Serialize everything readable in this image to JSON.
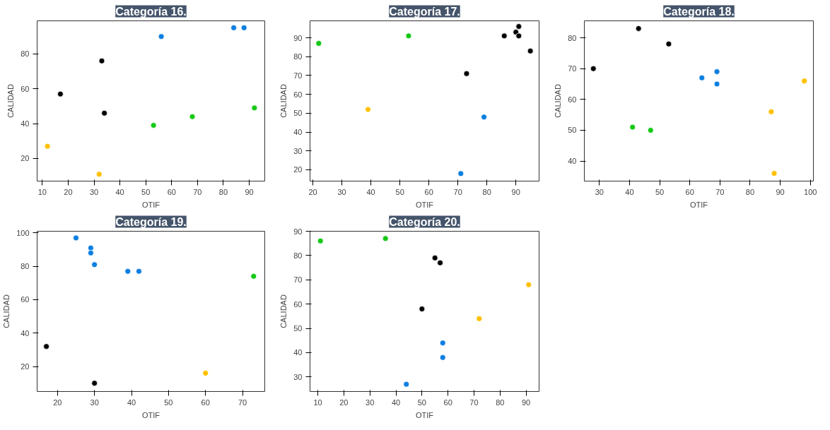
{
  "chart_data": [
    {
      "type": "scatter",
      "title": "Categoría 16.",
      "xlabel": "OTIF",
      "ylabel": "CALIDAD",
      "xlim": [
        8,
        96
      ],
      "ylim": [
        7,
        99
      ],
      "xticks": [
        10,
        20,
        30,
        40,
        50,
        60,
        70,
        80,
        90
      ],
      "yticks": [
        20,
        40,
        60,
        80
      ],
      "grid": false,
      "marker": "circle",
      "series": [
        {
          "color": "#0a7ee0",
          "x": [
            56,
            84,
            88
          ],
          "values": [
            90,
            95,
            95
          ]
        },
        {
          "color": "#000000",
          "x": [
            17,
            33,
            34
          ],
          "values": [
            57,
            76,
            46
          ]
        },
        {
          "color": "#14c814",
          "x": [
            53,
            68,
            92
          ],
          "values": [
            39,
            44,
            49
          ]
        },
        {
          "color": "#ffc000",
          "x": [
            12,
            32
          ],
          "values": [
            27,
            11
          ]
        }
      ]
    },
    {
      "type": "scatter",
      "title": "Categoría 17.",
      "xlabel": "OTIF",
      "ylabel": "CALIDAD",
      "xlim": [
        19,
        98
      ],
      "ylim": [
        14,
        99
      ],
      "xticks": [
        20,
        30,
        40,
        50,
        60,
        70,
        80,
        90
      ],
      "yticks": [
        20,
        30,
        40,
        50,
        60,
        70,
        80,
        90
      ],
      "grid": false,
      "marker": "circle",
      "series": [
        {
          "color": "#14c814",
          "x": [
            22,
            53
          ],
          "values": [
            87,
            91
          ]
        },
        {
          "color": "#ffc000",
          "x": [
            39
          ],
          "values": [
            52
          ]
        },
        {
          "color": "#0a7ee0",
          "x": [
            71,
            79
          ],
          "values": [
            18,
            48
          ]
        },
        {
          "color": "#000000",
          "x": [
            73,
            86,
            90,
            91,
            91,
            95
          ],
          "values": [
            71,
            91,
            93,
            96,
            91,
            83
          ]
        }
      ]
    },
    {
      "type": "scatter",
      "title": "Categoría 18.",
      "xlabel": "OTIF",
      "ylabel": "CALIDAD",
      "xlim": [
        25,
        101
      ],
      "ylim": [
        33.5,
        85.5
      ],
      "xticks": [
        30,
        40,
        50,
        60,
        70,
        80,
        90,
        100
      ],
      "yticks": [
        40,
        50,
        60,
        70,
        80
      ],
      "grid": false,
      "marker": "circle",
      "series": [
        {
          "color": "#000000",
          "x": [
            28,
            43,
            53
          ],
          "values": [
            70,
            83,
            78
          ]
        },
        {
          "color": "#0a7ee0",
          "x": [
            64,
            69,
            69
          ],
          "values": [
            67,
            69,
            65
          ]
        },
        {
          "color": "#14c814",
          "x": [
            41,
            47
          ],
          "values": [
            51,
            50
          ]
        },
        {
          "color": "#ffc000",
          "x": [
            87,
            88,
            98
          ],
          "values": [
            56,
            36,
            66
          ]
        }
      ]
    },
    {
      "type": "scatter",
      "title": "Categoría 19.",
      "xlabel": "OTIF",
      "ylabel": "CALIDAD",
      "xlim": [
        14.5,
        76
      ],
      "ylim": [
        5,
        101
      ],
      "xticks": [
        20,
        30,
        40,
        50,
        60,
        70
      ],
      "yticks": [
        20,
        40,
        60,
        80,
        100
      ],
      "grid": false,
      "marker": "circle",
      "series": [
        {
          "color": "#0a7ee0",
          "x": [
            25,
            29,
            29,
            30,
            39,
            42
          ],
          "values": [
            97,
            91,
            88,
            81,
            77,
            77
          ]
        },
        {
          "color": "#14c814",
          "x": [
            73
          ],
          "values": [
            74
          ]
        },
        {
          "color": "#000000",
          "x": [
            17,
            30
          ],
          "values": [
            32,
            10
          ]
        },
        {
          "color": "#ffc000",
          "x": [
            60
          ],
          "values": [
            16
          ]
        }
      ]
    },
    {
      "type": "scatter",
      "title": "Categoría 20.",
      "xlabel": "OTIF",
      "ylabel": "CALIDAD",
      "xlim": [
        7,
        95
      ],
      "ylim": [
        24,
        90
      ],
      "xticks": [
        10,
        20,
        30,
        40,
        50,
        60,
        70,
        80,
        90
      ],
      "yticks": [
        30,
        40,
        50,
        60,
        70,
        80,
        90
      ],
      "grid": false,
      "marker": "circle",
      "series": [
        {
          "color": "#14c814",
          "x": [
            11,
            36
          ],
          "values": [
            86,
            87
          ]
        },
        {
          "color": "#000000",
          "x": [
            50,
            55,
            57
          ],
          "values": [
            58,
            79,
            77
          ]
        },
        {
          "color": "#ffc000",
          "x": [
            72,
            91
          ],
          "values": [
            54,
            68
          ]
        },
        {
          "color": "#0a7ee0",
          "x": [
            44,
            58,
            58
          ],
          "values": [
            27,
            44,
            38
          ]
        }
      ]
    }
  ]
}
